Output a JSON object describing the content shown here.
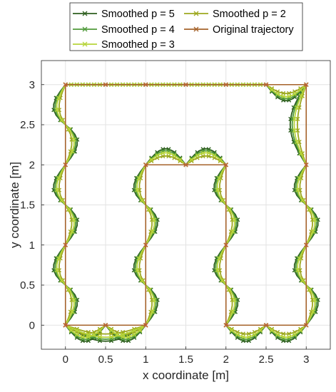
{
  "chart_data": {
    "type": "line",
    "xlabel": "x coordinate [m]",
    "ylabel": "y coordinate [m]",
    "xlim": [
      -0.3,
      3.3
    ],
    "ylim": [
      -0.3,
      3.3
    ],
    "xticks": [
      0,
      0.5,
      1,
      1.5,
      2,
      2.5,
      3
    ],
    "xtick_labels": [
      "0",
      "0.5",
      "1",
      "1.5",
      "2",
      "2.5",
      "3"
    ],
    "yticks": [
      0,
      0.5,
      1,
      1.5,
      2,
      2.5,
      3
    ],
    "ytick_labels": [
      "0",
      "0.5",
      "1",
      "1.5",
      "2",
      "2.5",
      "3"
    ],
    "grid": true,
    "legend_position": "top",
    "legend_order": [
      0,
      3,
      1,
      4,
      2
    ],
    "series": [
      {
        "name": "Smoothed p = 5",
        "color": "#2d5e1e",
        "marker": "x",
        "bulge": 0.2,
        "amp": 0.15
      },
      {
        "name": "Smoothed p = 4",
        "color": "#4f9a3a",
        "marker": "x",
        "bulge": 0.175,
        "amp": 0.13
      },
      {
        "name": "Smoothed p = 3",
        "color": "#b7d43a",
        "marker": "x",
        "bulge": 0.15,
        "amp": 0.11
      },
      {
        "name": "Smoothed p = 2",
        "color": "#9da81e",
        "marker": "x",
        "bulge": 0.11,
        "amp": 0.08
      },
      {
        "name": "Original trajectory",
        "color": "#a5622a",
        "marker": "x",
        "x": [
          0,
          1,
          1,
          1,
          1.5,
          2,
          2,
          2,
          2.5,
          3,
          3,
          3,
          3,
          2.5,
          2,
          1.5,
          1,
          0.5,
          0,
          0,
          0,
          0,
          0.5,
          1
        ],
        "y": [
          0,
          0,
          1,
          2,
          2,
          2,
          1,
          0,
          0,
          0,
          1,
          2,
          3,
          3,
          3,
          3,
          3,
          3,
          3,
          2,
          1,
          0,
          0,
          0
        ]
      }
    ]
  }
}
